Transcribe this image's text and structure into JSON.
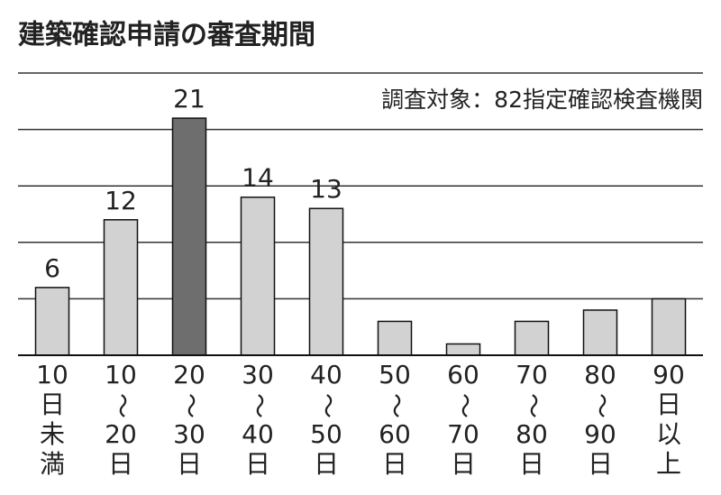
{
  "chart_data": {
    "type": "bar",
    "title": "建築確認申請の審査期間",
    "annotation": "調査対象：82指定確認検査機関",
    "categories": [
      [
        "10",
        "日",
        "未",
        "満"
      ],
      [
        "10",
        "〜",
        "20",
        "日"
      ],
      [
        "20",
        "〜",
        "30",
        "日"
      ],
      [
        "30",
        "〜",
        "40",
        "日"
      ],
      [
        "40",
        "〜",
        "50",
        "日"
      ],
      [
        "50",
        "〜",
        "60",
        "日"
      ],
      [
        "60",
        "〜",
        "70",
        "日"
      ],
      [
        "70",
        "〜",
        "80",
        "日"
      ],
      [
        "80",
        "〜",
        "90",
        "日"
      ],
      [
        "90",
        "日",
        "以",
        "上"
      ]
    ],
    "values": [
      6,
      12,
      21,
      14,
      13,
      3,
      1,
      3,
      4,
      5
    ],
    "value_labels": [
      "6",
      "12",
      "21",
      "14",
      "13",
      null,
      null,
      null,
      null,
      null
    ],
    "colors": [
      "#d2d2d2",
      "#d2d2d2",
      "#6e6e6e",
      "#d2d2d2",
      "#d2d2d2",
      "#d2d2d2",
      "#d2d2d2",
      "#d2d2d2",
      "#d2d2d2",
      "#d2d2d2"
    ],
    "ylim": [
      0,
      25
    ],
    "yticks": [
      0,
      5,
      10,
      15,
      20,
      25
    ],
    "grid": true
  }
}
